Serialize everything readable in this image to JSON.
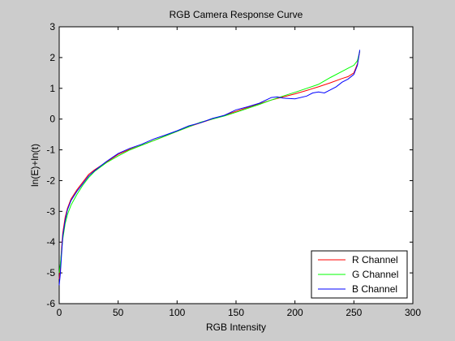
{
  "colors": {
    "figure_background": "#cccccc",
    "axes_background": "#ffffff",
    "axis": "#000000",
    "legend_border": "#000000"
  },
  "chart_data": {
    "type": "line",
    "title": "RGB Camera Response Curve",
    "xlabel": "RGB Intensity",
    "ylabel": "ln(E)+ln(t)",
    "xlim": [
      0,
      300
    ],
    "ylim": [
      -6,
      3
    ],
    "xticks": [
      0,
      50,
      100,
      150,
      200,
      250,
      300
    ],
    "yticks": [
      -6,
      -5,
      -4,
      -3,
      -2,
      -1,
      0,
      1,
      2,
      3
    ],
    "grid": false,
    "legend_position": "bottom-right",
    "series": [
      {
        "name": "R Channel",
        "color": "#ff0000",
        "x": [
          0,
          1,
          2,
          3,
          5,
          7,
          10,
          15,
          20,
          25,
          30,
          40,
          50,
          60,
          70,
          80,
          90,
          100,
          110,
          120,
          130,
          140,
          150,
          160,
          170,
          180,
          190,
          200,
          210,
          220,
          230,
          240,
          245,
          250,
          253,
          255
        ],
        "y": [
          -5.2,
          -4.8,
          -4.2,
          -3.7,
          -3.2,
          -2.9,
          -2.6,
          -2.3,
          -2.05,
          -1.8,
          -1.65,
          -1.4,
          -1.15,
          -0.98,
          -0.85,
          -0.7,
          -0.55,
          -0.4,
          -0.25,
          -0.12,
          0.0,
          0.12,
          0.25,
          0.38,
          0.5,
          0.62,
          0.72,
          0.82,
          0.93,
          1.05,
          1.18,
          1.32,
          1.38,
          1.5,
          1.8,
          2.2
        ]
      },
      {
        "name": "G Channel",
        "color": "#00ff00",
        "x": [
          0,
          1,
          2,
          3,
          5,
          7,
          10,
          15,
          20,
          25,
          30,
          40,
          50,
          60,
          70,
          80,
          90,
          100,
          110,
          120,
          130,
          140,
          150,
          160,
          170,
          180,
          190,
          200,
          210,
          220,
          230,
          240,
          245,
          250,
          253,
          255
        ],
        "y": [
          -5.0,
          -4.7,
          -4.3,
          -3.9,
          -3.4,
          -3.1,
          -2.8,
          -2.45,
          -2.15,
          -1.9,
          -1.7,
          -1.42,
          -1.2,
          -1.0,
          -0.85,
          -0.7,
          -0.55,
          -0.4,
          -0.25,
          -0.1,
          0.0,
          0.1,
          0.22,
          0.35,
          0.48,
          0.62,
          0.75,
          0.87,
          1.0,
          1.13,
          1.35,
          1.55,
          1.65,
          1.75,
          1.9,
          2.2
        ]
      },
      {
        "name": "B Channel",
        "color": "#0000ff",
        "x": [
          0,
          1,
          2,
          3,
          5,
          7,
          10,
          15,
          20,
          25,
          30,
          40,
          50,
          60,
          70,
          80,
          90,
          100,
          110,
          120,
          130,
          140,
          150,
          160,
          170,
          180,
          185,
          190,
          200,
          210,
          215,
          220,
          225,
          230,
          235,
          240,
          245,
          250,
          253,
          255
        ],
        "y": [
          -5.4,
          -5.0,
          -4.4,
          -3.8,
          -3.3,
          -2.95,
          -2.65,
          -2.35,
          -2.1,
          -1.85,
          -1.68,
          -1.38,
          -1.12,
          -0.95,
          -0.82,
          -0.65,
          -0.52,
          -0.38,
          -0.22,
          -0.12,
          0.02,
          0.12,
          0.3,
          0.4,
          0.52,
          0.7,
          0.72,
          0.68,
          0.66,
          0.75,
          0.85,
          0.88,
          0.85,
          0.95,
          1.05,
          1.2,
          1.3,
          1.45,
          1.75,
          2.25
        ]
      }
    ]
  }
}
